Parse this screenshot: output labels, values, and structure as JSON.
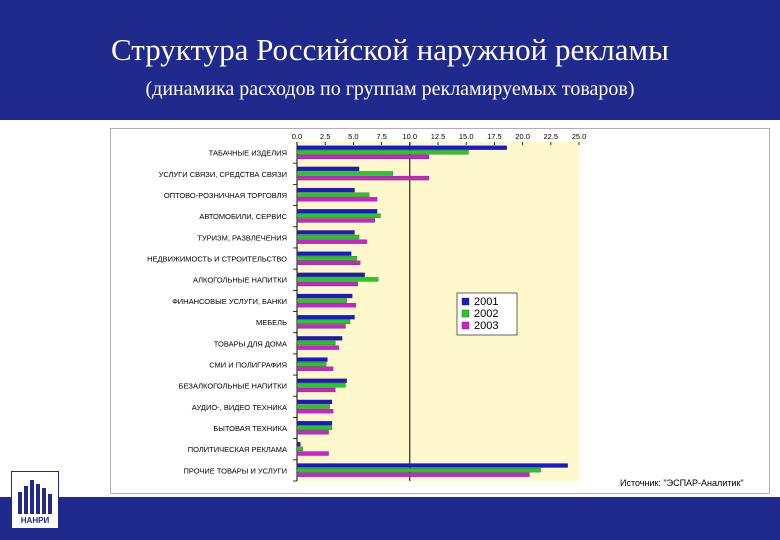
{
  "header": {
    "title": "Структура Российской наружной рекламы",
    "subtitle": "(динамика расходов по группам рекламируемых товаров)"
  },
  "source_text": "Источник: \"ЭСПАР-Аналитик\"",
  "logo_text": "НАНРИ",
  "colors": {
    "header_bg": "#1f2a8c",
    "plot_bg": "#fff8cc",
    "series_2001": "#1a1ac8",
    "series_2002": "#22cc22",
    "series_2003": "#cc22cc"
  },
  "chart_data": {
    "type": "bar",
    "orientation": "horizontal",
    "x_ticks": [
      "0.0",
      "2.5",
      "5.0",
      "7.5",
      "10.0",
      "12.5",
      "15.0",
      "17.5",
      "20.0",
      "22.5",
      "25.0"
    ],
    "xlim": [
      0,
      25
    ],
    "reference_line": 10,
    "categories": [
      "ТАБАЧНЫЕ ИЗДЕЛИЯ",
      "УСЛУГИ СВЯЗИ, СРЕДСТВА СВЯЗИ",
      "ОПТОВО-РОЗНИЧНАЯ ТОРГОВЛЯ",
      "АВТОМОБИЛИ, СЕРВИС",
      "ТУРИЗМ, РАЗВЛЕЧЕНИЯ",
      "НЕДВИЖИМОСТЬ И СТРОИТЕЛЬСТВО",
      "АЛКОГОЛЬНЫЕ НАПИТКИ",
      "ФИНАНСОВЫЕ УСЛУГИ, БАНКИ",
      "МЕБЕЛЬ",
      "ТОВАРЫ ДЛЯ ДОМА",
      "СМИ И ПОЛИГРАФИЯ",
      "БЕЗАЛКОГОЛЬНЫЕ НАПИТКИ",
      "АУДИО-, ВИДЕО ТЕХНИКА",
      "БЫТОВАЯ ТЕХНИКА",
      "ПОЛИТИЧЕСКАЯ РЕКЛАМА",
      "ПРОЧИЕ ТОВАРЫ И УСЛУГИ"
    ],
    "series": [
      {
        "name": "2001",
        "values": [
          18.6,
          5.5,
          5.1,
          7.1,
          5.1,
          4.8,
          6.0,
          4.9,
          5.1,
          4.0,
          2.7,
          4.4,
          3.1,
          3.1,
          0.3,
          24.0
        ]
      },
      {
        "name": "2002",
        "values": [
          15.2,
          8.5,
          6.4,
          7.4,
          5.5,
          5.3,
          7.2,
          4.4,
          4.7,
          3.4,
          2.6,
          4.3,
          2.9,
          3.1,
          0.5,
          21.6
        ]
      },
      {
        "name": "2003",
        "values": [
          11.7,
          11.7,
          7.1,
          6.9,
          6.2,
          5.6,
          5.4,
          5.2,
          4.3,
          3.7,
          3.2,
          3.4,
          3.2,
          2.8,
          2.8,
          20.6
        ]
      }
    ],
    "legend_position": "right-middle",
    "grid": false
  }
}
